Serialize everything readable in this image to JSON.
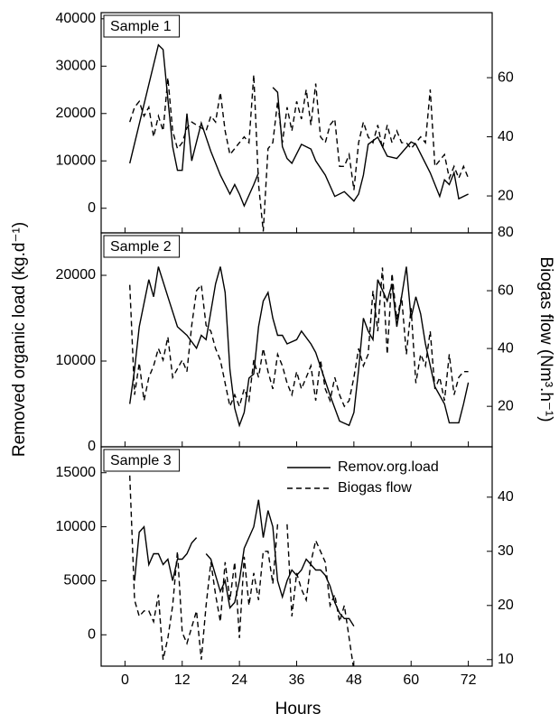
{
  "xlabel": "Hours",
  "ylabel": "Removed organic load (kg.d⁻¹)",
  "y2label": "Biogas flow (Nm³.h⁻¹)",
  "xlim": [
    -5,
    77
  ],
  "xticks": [
    0,
    12,
    24,
    36,
    48,
    60,
    72
  ],
  "chart_data": [
    {
      "type": "line",
      "title": "Sample 1",
      "ylim": [
        -5200,
        41300
      ],
      "yticks": [
        0,
        10000,
        20000,
        30000,
        40000
      ],
      "y2lim": [
        7.5,
        82
      ],
      "y2ticks": [
        20,
        40,
        60
      ],
      "series": [
        {
          "color": "#000000",
          "line_style": "solid",
          "x": [
            1,
            7,
            8,
            9,
            10,
            11,
            12,
            13,
            14,
            16,
            18,
            20,
            22,
            23,
            24,
            25,
            27,
            28,
            29,
            31,
            32,
            33,
            34,
            35,
            37,
            39,
            40,
            42,
            44,
            46,
            48,
            49,
            50,
            51,
            53,
            54,
            55,
            57,
            60,
            61,
            64,
            66,
            67,
            68,
            69,
            70,
            72
          ],
          "values": [
            9500,
            34500,
            33500,
            23000,
            13000,
            8000,
            8000,
            20000,
            10000,
            18000,
            12000,
            7000,
            3000,
            5000,
            3000,
            500,
            5000,
            7500,
            null,
            25500,
            24500,
            13000,
            10500,
            9500,
            13500,
            12500,
            10000,
            7000,
            2500,
            3500,
            1500,
            3000,
            7000,
            13500,
            15000,
            13000,
            11000,
            10500,
            14000,
            13500,
            7500,
            2500,
            6000,
            5000,
            7500,
            2000,
            3000
          ]
        },
        {
          "color": "#000000",
          "line_style": "dashed",
          "axis": "y2",
          "x": [
            1,
            2,
            3,
            4,
            5,
            6,
            7,
            8,
            9,
            10,
            11,
            12,
            13,
            14,
            15,
            16,
            17,
            18,
            19,
            20,
            21,
            22,
            23,
            24,
            25,
            26,
            27,
            28,
            29,
            30,
            31,
            32,
            33,
            34,
            35,
            36,
            37,
            38,
            39,
            40,
            41,
            42,
            43,
            44,
            45,
            46,
            47,
            48,
            49,
            50,
            51,
            52,
            53,
            54,
            55,
            56,
            57,
            58,
            59,
            60,
            61,
            62,
            63,
            64,
            65,
            66,
            67,
            68,
            69,
            70,
            71,
            72
          ],
          "values": [
            45,
            50,
            52,
            47,
            50,
            40,
            47,
            42,
            60,
            42,
            36,
            38,
            43,
            45,
            44,
            43,
            42,
            47,
            45,
            55,
            42,
            34,
            36,
            38,
            40,
            38,
            61,
            24,
            8,
            36,
            38,
            52,
            38,
            50,
            42,
            52,
            46,
            56,
            44,
            58,
            40,
            38,
            44,
            46,
            30,
            30,
            34,
            22,
            38,
            45,
            40,
            38,
            44,
            36,
            44,
            38,
            42,
            38,
            38,
            36,
            38,
            40,
            38,
            56,
            30,
            32,
            34,
            26,
            30,
            26,
            30,
            26
          ]
        }
      ]
    },
    {
      "type": "line",
      "title": "Sample 2",
      "ylim": [
        0,
        24950
      ],
      "yticks": [
        0,
        10000,
        20000
      ],
      "y2lim": [
        6,
        80
      ],
      "y2ticks": [
        20,
        40,
        60,
        80
      ],
      "series": [
        {
          "color": "#000000",
          "line_style": "solid",
          "x": [
            1,
            2,
            3,
            5,
            6,
            7,
            9,
            11,
            13,
            15,
            16,
            17,
            19,
            20,
            21,
            22,
            23,
            24,
            25,
            26,
            27,
            28,
            29,
            30,
            31,
            32,
            33,
            34,
            36,
            37,
            39,
            40,
            43,
            45,
            47,
            48,
            49,
            50,
            51,
            52,
            53,
            55,
            56,
            57,
            59,
            60,
            61,
            62,
            63,
            65,
            67,
            68,
            70,
            71,
            72
          ],
          "values": [
            5000,
            9000,
            14000,
            19500,
            17500,
            21000,
            17500,
            14000,
            13000,
            11500,
            13000,
            12500,
            19000,
            21000,
            18000,
            9000,
            4500,
            2500,
            4000,
            8000,
            8500,
            14000,
            17000,
            18000,
            15000,
            13000,
            13000,
            12000,
            12500,
            13500,
            12000,
            11000,
            6000,
            3000,
            2500,
            4000,
            9000,
            15000,
            13500,
            12500,
            19500,
            17000,
            19000,
            14000,
            21000,
            15000,
            17500,
            15500,
            12000,
            7000,
            5000,
            2800,
            2800,
            5000,
            7500
          ]
        },
        {
          "color": "#000000",
          "line_style": "dashed",
          "axis": "y2",
          "x": [
            1,
            2,
            3,
            4,
            5,
            6,
            7,
            8,
            9,
            10,
            11,
            12,
            13,
            14,
            15,
            16,
            17,
            18,
            19,
            20,
            21,
            22,
            23,
            24,
            25,
            26,
            27,
            28,
            29,
            30,
            31,
            32,
            33,
            34,
            35,
            36,
            37,
            38,
            39,
            40,
            41,
            42,
            43,
            44,
            45,
            46,
            47,
            48,
            49,
            50,
            51,
            52,
            53,
            54,
            55,
            56,
            57,
            58,
            59,
            60,
            61,
            62,
            63,
            64,
            65,
            66,
            67,
            68,
            69,
            70,
            71,
            72
          ],
          "values": [
            62,
            24,
            35,
            22,
            30,
            34,
            40,
            36,
            44,
            30,
            33,
            36,
            32,
            48,
            60,
            62,
            48,
            46,
            40,
            36,
            28,
            20,
            24,
            20,
            26,
            22,
            36,
            30,
            40,
            32,
            26,
            38,
            34,
            28,
            24,
            32,
            26,
            30,
            34,
            22,
            36,
            26,
            22,
            30,
            24,
            20,
            22,
            30,
            40,
            34,
            38,
            60,
            46,
            68,
            38,
            66,
            50,
            58,
            38,
            54,
            28,
            38,
            34,
            46,
            26,
            30,
            22,
            38,
            24,
            30,
            32,
            32
          ]
        }
      ]
    },
    {
      "type": "line",
      "title": "Sample 3",
      "ylim": [
        -2900,
        17400
      ],
      "yticks": [
        0,
        5000,
        10000,
        15000
      ],
      "y2lim": [
        8.8,
        49.3
      ],
      "y2ticks": [
        10,
        20,
        30,
        40
      ],
      "legend": "upper right",
      "series": [
        {
          "name": "Remov.org.load",
          "color": "#000000",
          "line_style": "solid",
          "x": [
            2,
            3,
            4,
            5,
            6,
            7,
            8,
            9,
            10,
            11,
            12,
            13,
            14,
            15,
            16,
            17,
            18,
            19,
            20,
            21,
            22,
            23,
            24,
            25,
            27,
            28,
            29,
            30,
            31,
            32,
            33,
            34,
            35,
            36,
            37,
            38,
            39,
            40,
            41,
            42,
            43,
            44,
            45,
            46,
            47,
            48
          ],
          "values": [
            5000,
            9500,
            10000,
            6500,
            7500,
            7500,
            6500,
            7000,
            5000,
            7000,
            7000,
            7500,
            8500,
            9000,
            null,
            7500,
            7000,
            5500,
            4000,
            5000,
            2500,
            3000,
            5000,
            8000,
            10000,
            12500,
            9000,
            11500,
            10000,
            5000,
            3500,
            5000,
            6000,
            5500,
            6000,
            7000,
            6500,
            6000,
            6000,
            5500,
            4500,
            3000,
            2000,
            1500,
            1500,
            800
          ]
        },
        {
          "name": "Biogas flow",
          "color": "#000000",
          "line_style": "dashed",
          "axis": "y2",
          "x": [
            1,
            2,
            3,
            4,
            5,
            6,
            7,
            8,
            9,
            10,
            11,
            12,
            13,
            14,
            15,
            16,
            17,
            18,
            19,
            20,
            21,
            22,
            23,
            24,
            25,
            26,
            27,
            28,
            29,
            30,
            31,
            32,
            33,
            34,
            35,
            36,
            37,
            38,
            39,
            40,
            41,
            42,
            43,
            44,
            45,
            46,
            47,
            48
          ],
          "values": [
            44,
            21,
            18,
            19,
            19,
            17,
            22,
            10,
            14,
            20,
            30,
            15,
            13,
            16,
            19,
            10,
            20,
            28,
            22,
            17,
            28,
            21,
            28,
            14,
            29,
            20,
            26,
            21,
            30,
            30,
            24,
            35,
            null,
            35,
            18,
            26,
            23,
            21,
            28,
            32,
            30,
            28,
            20,
            22,
            17,
            20,
            14,
            8
          ]
        }
      ]
    }
  ]
}
